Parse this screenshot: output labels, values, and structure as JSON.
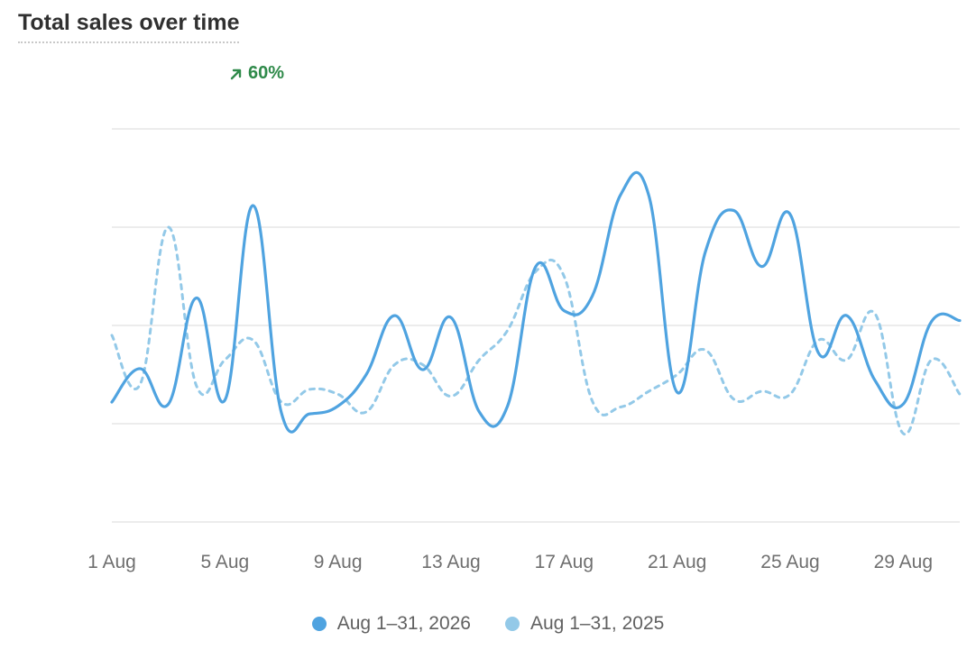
{
  "header": {
    "title": "Total sales over time",
    "change_label": "60%",
    "change_icon": "arrow-up-right-icon",
    "change_color": "#2f8a4a"
  },
  "legend": [
    {
      "label": "Aug 1–31, 2026",
      "color": "#4fa3e0"
    },
    {
      "label": "Aug 1–31, 2025",
      "color": "#93c9e8"
    }
  ],
  "chart_data": {
    "type": "line",
    "x_tick_labels": [
      "1 Aug",
      "5 Aug",
      "9 Aug",
      "13 Aug",
      "17 Aug",
      "21 Aug",
      "25 Aug",
      "29 Aug"
    ],
    "ylim": [
      -1,
      3
    ],
    "y_gridlines": [
      -1,
      0,
      1,
      2,
      3
    ],
    "y_tick_labels_shown": false,
    "grid": true,
    "legend_position": "bottom-center",
    "series": [
      {
        "name": "Aug 1–31, 2026",
        "style": "solid",
        "color": "#4fa3e0",
        "x": [
          1,
          2,
          3,
          4,
          5,
          6,
          7,
          8,
          9,
          10,
          11,
          12,
          13,
          14,
          15,
          16,
          17,
          18,
          19,
          20,
          21,
          22,
          23,
          24,
          25,
          26,
          27,
          28,
          29,
          30,
          31
        ],
        "y": [
          0.22,
          0.56,
          0.2,
          1.28,
          0.24,
          2.22,
          0.11,
          0.1,
          0.18,
          0.5,
          1.1,
          0.55,
          1.08,
          0.12,
          0.18,
          1.6,
          1.15,
          1.3,
          2.33,
          2.32,
          0.32,
          1.75,
          2.17,
          1.6,
          2.13,
          0.72,
          1.1,
          0.44,
          0.2,
          1.04,
          1.05
        ]
      },
      {
        "name": "Aug 1–31, 2025",
        "style": "dashed",
        "color": "#93c9e8",
        "x": [
          1,
          2,
          3,
          4,
          5,
          6,
          7,
          8,
          9,
          10,
          11,
          12,
          13,
          14,
          15,
          16,
          17,
          18,
          19,
          20,
          21,
          22,
          23,
          24,
          25,
          26,
          27,
          28,
          29,
          30,
          31
        ],
        "y": [
          0.9,
          0.4,
          2.0,
          0.38,
          0.65,
          0.85,
          0.22,
          0.35,
          0.3,
          0.12,
          0.6,
          0.6,
          0.28,
          0.65,
          0.95,
          1.55,
          1.5,
          0.23,
          0.17,
          0.33,
          0.5,
          0.75,
          0.25,
          0.33,
          0.3,
          0.85,
          0.65,
          1.12,
          -0.1,
          0.65,
          0.3
        ]
      }
    ]
  }
}
